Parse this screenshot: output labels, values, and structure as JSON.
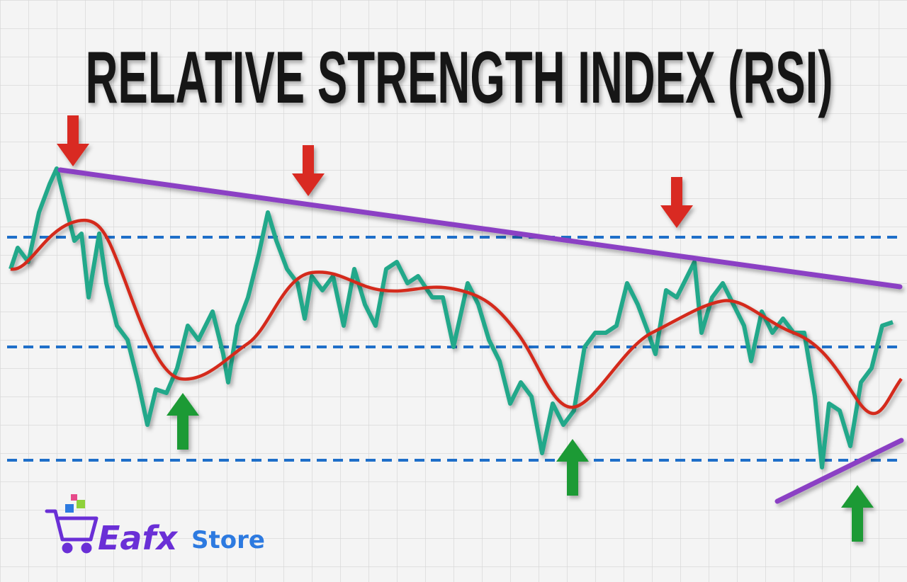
{
  "title": "RELATIVE STRENGTH INDEX (RSI)",
  "logo": {
    "brand": "Eafx",
    "suffix": "Store"
  }
}
